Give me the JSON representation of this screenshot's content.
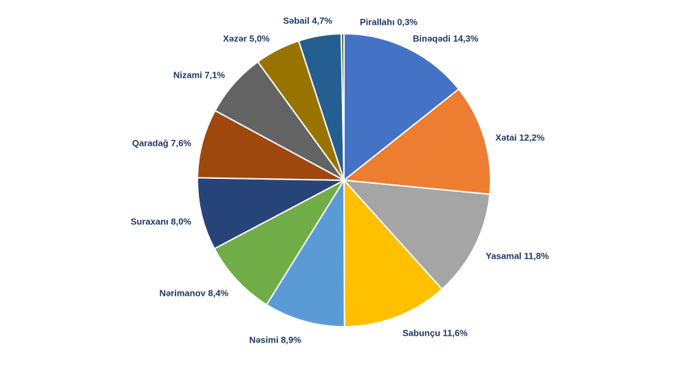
{
  "chart_data": {
    "type": "pie",
    "title": "",
    "slices": [
      {
        "label": "Binəqədi 14,3%",
        "value": 14.3,
        "color": "#4472c4"
      },
      {
        "label": "Xətai 12,2%",
        "value": 12.2,
        "color": "#ed7d31"
      },
      {
        "label": "Yasamal 11,8%",
        "value": 11.8,
        "color": "#a5a5a5"
      },
      {
        "label": "Sabunçu 11,6%",
        "value": 11.6,
        "color": "#ffc000"
      },
      {
        "label": "Nəsimi 8,9%",
        "value": 8.9,
        "color": "#5b9bd5"
      },
      {
        "label": "Nərimanov 8,4%",
        "value": 8.4,
        "color": "#70ad47"
      },
      {
        "label": "Suraxanı 8,0%",
        "value": 8.0,
        "color": "#264478"
      },
      {
        "label": "Qaradağ 7,6%",
        "value": 7.6,
        "color": "#9e480e"
      },
      {
        "label": "Nizami 7,1%",
        "value": 7.1,
        "color": "#636363"
      },
      {
        "label": "Xəzər 5,0%",
        "value": 5.0,
        "color": "#997300"
      },
      {
        "label": "Səbail 4,7%",
        "value": 4.7,
        "color": "#255e91"
      },
      {
        "label": "Pirallahı 0,3%",
        "value": 0.3,
        "color": "#43682b"
      }
    ],
    "legend": "none"
  }
}
